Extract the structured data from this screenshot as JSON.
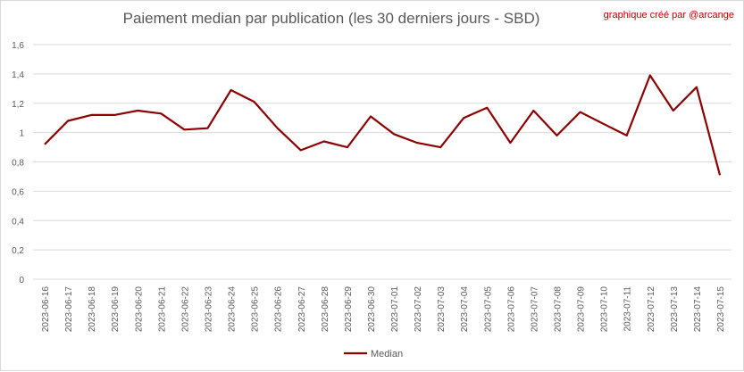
{
  "chart_data": {
    "type": "line",
    "title": "Paiement median par publication (les 30 derniers jours - SBD)",
    "credit": "graphique créé par @arcange",
    "ylim": [
      0,
      1.6
    ],
    "yticks": [
      "0",
      "0,2",
      "0,4",
      "0,6",
      "0,8",
      "1",
      "1,2",
      "1,4",
      "1,6"
    ],
    "ytick_values": [
      0,
      0.2,
      0.4,
      0.6,
      0.8,
      1.0,
      1.2,
      1.4,
      1.6
    ],
    "grid": true,
    "legend": "bottom",
    "categories": [
      "2023-06-16",
      "2023-06-17",
      "2023-06-18",
      "2023-06-19",
      "2023-06-20",
      "2023-06-21",
      "2023-06-22",
      "2023-06-23",
      "2023-06-24",
      "2023-06-25",
      "2023-06-26",
      "2023-06-27",
      "2023-06-28",
      "2023-06-29",
      "2023-06-30",
      "2023-07-01",
      "2023-07-02",
      "2023-07-03",
      "2023-07-04",
      "2023-07-05",
      "2023-07-06",
      "2023-07-07",
      "2023-07-08",
      "2023-07-09",
      "2023-07-10",
      "2023-07-11",
      "2023-07-12",
      "2023-07-13",
      "2023-07-14",
      "2023-07-15"
    ],
    "series": [
      {
        "name": "Median",
        "color": "#8b0000",
        "values": [
          0.92,
          1.08,
          1.12,
          1.12,
          1.15,
          1.13,
          1.02,
          1.03,
          1.29,
          1.21,
          1.03,
          0.88,
          0.94,
          0.9,
          1.11,
          0.99,
          0.93,
          0.9,
          1.1,
          1.17,
          0.93,
          1.15,
          0.98,
          1.14,
          1.06,
          0.98,
          1.39,
          1.15,
          1.31,
          0.71
        ]
      }
    ]
  }
}
